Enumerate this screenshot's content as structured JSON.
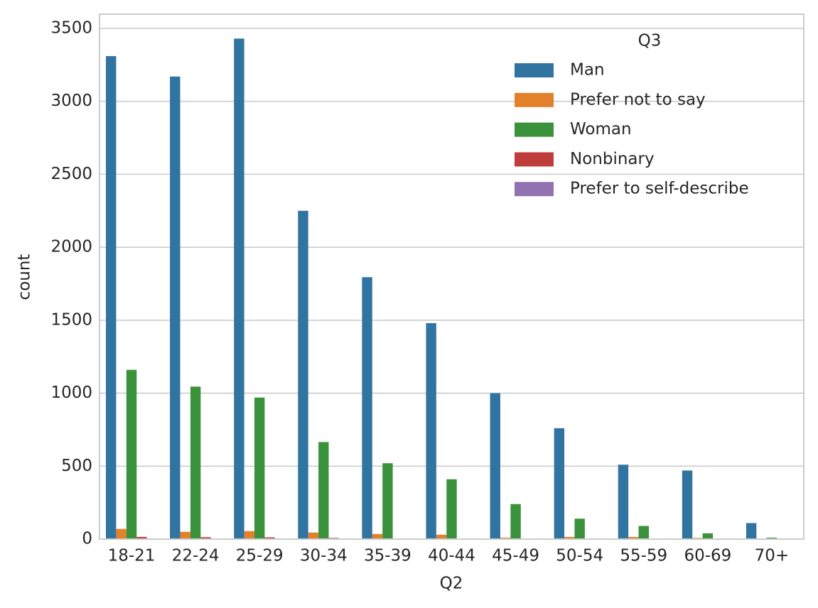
{
  "chart_data": {
    "type": "bar",
    "x_label": "Q2",
    "y_label": "count",
    "legend_title": "Q3",
    "legend_position": "upper right",
    "categories": [
      "18-21",
      "22-24",
      "25-29",
      "30-34",
      "35-39",
      "40-44",
      "45-49",
      "50-54",
      "55-59",
      "60-69",
      "70+"
    ],
    "series": [
      {
        "name": "Man",
        "color": "#3274a1",
        "values": [
          3310,
          3170,
          3430,
          2250,
          1795,
          1480,
          1000,
          760,
          510,
          470,
          110
        ]
      },
      {
        "name": "Prefer not to say",
        "color": "#e1812c",
        "values": [
          70,
          50,
          55,
          45,
          35,
          30,
          10,
          15,
          15,
          8,
          2
        ]
      },
      {
        "name": "Woman",
        "color": "#3a923a",
        "values": [
          1160,
          1045,
          970,
          665,
          520,
          410,
          240,
          140,
          90,
          40,
          10
        ]
      },
      {
        "name": "Nonbinary",
        "color": "#c03d3e",
        "values": [
          15,
          13,
          12,
          8,
          4,
          3,
          2,
          2,
          1,
          1,
          0
        ]
      },
      {
        "name": "Prefer to self-describe",
        "color": "#9372b2",
        "values": [
          3,
          3,
          3,
          2,
          2,
          2,
          1,
          1,
          1,
          1,
          0
        ]
      }
    ],
    "ylim": [
      0,
      3597
    ],
    "yticks": [
      0,
      500,
      1000,
      1500,
      2000,
      2500,
      3000,
      3500
    ],
    "grid": true
  }
}
